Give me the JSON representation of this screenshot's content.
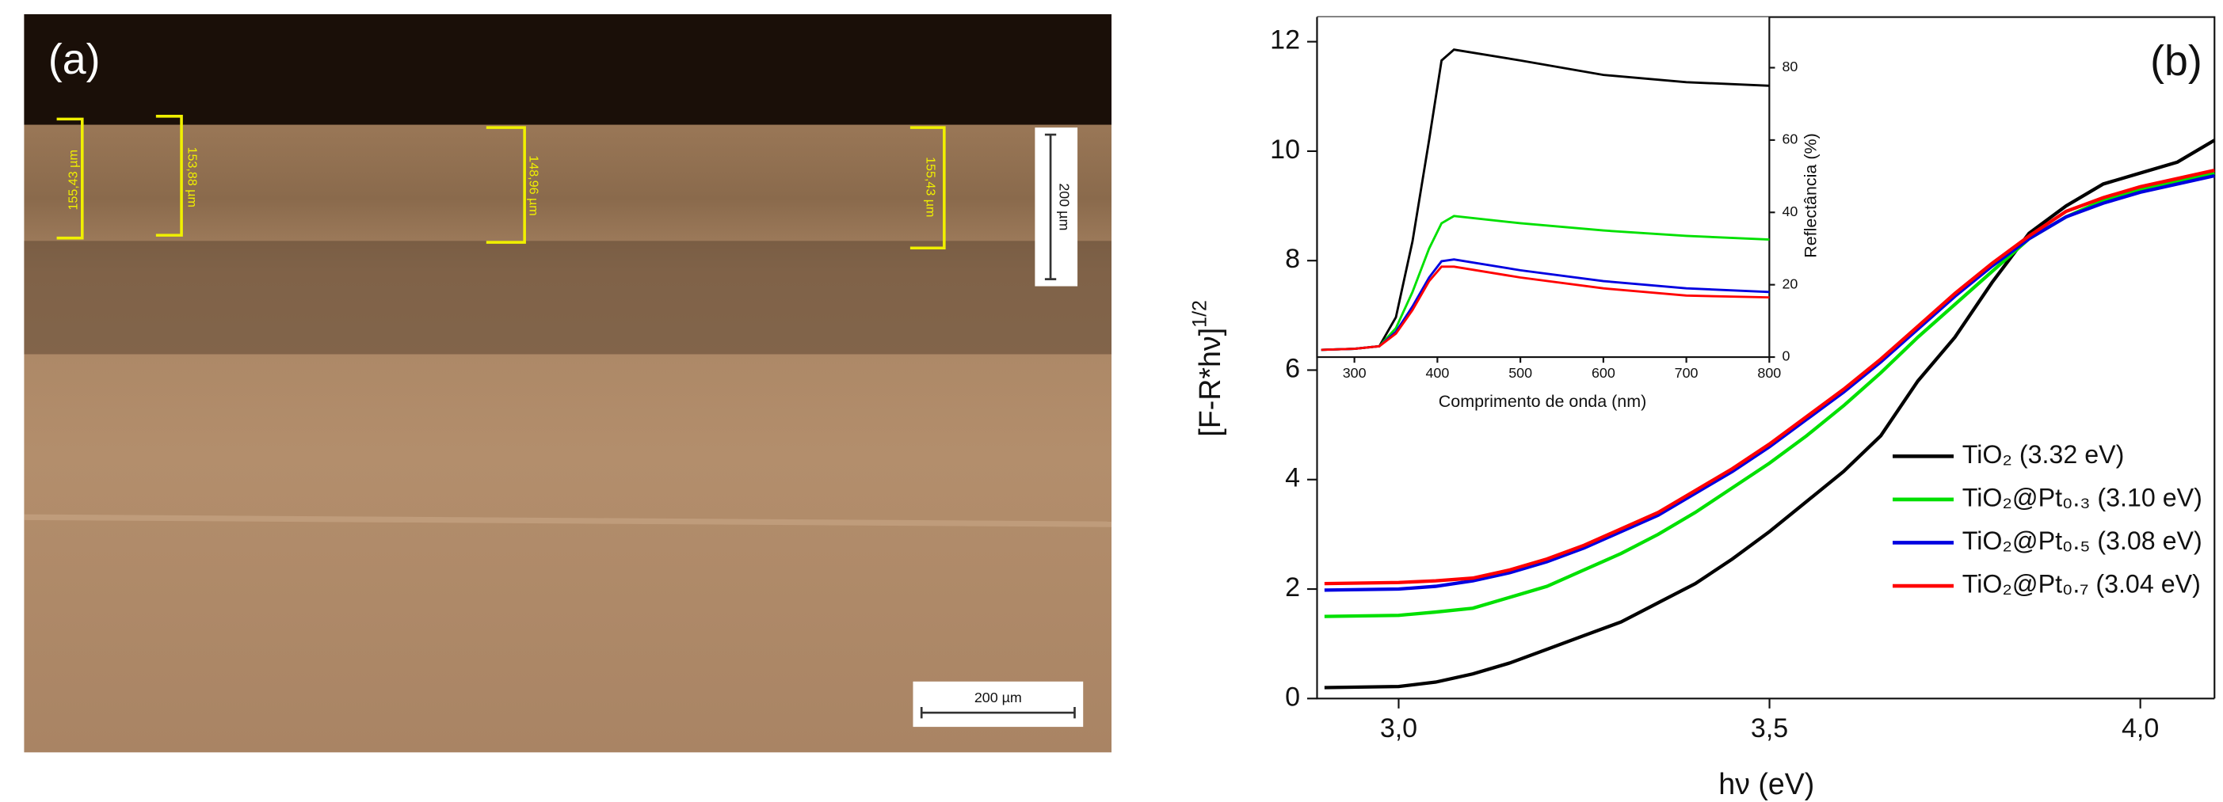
{
  "panel_a": {
    "label": "(a)",
    "measurements": [
      "155,43 µm",
      "153,88 µm",
      "148,96 µm",
      "155,43 µm"
    ],
    "vertical_scale": "200 µm",
    "scale_bar": "200 µm"
  },
  "chart_data": [
    {
      "type": "line",
      "panel_label": "(b)",
      "xlabel": "hν (eV)",
      "ylabel": "[F-R*hν]",
      "ylabel_superscript": "1/2",
      "x": [
        2.9,
        3.0,
        3.05,
        3.1,
        3.15,
        3.2,
        3.25,
        3.3,
        3.35,
        3.4,
        3.45,
        3.5,
        3.55,
        3.6,
        3.65,
        3.7,
        3.75,
        3.8,
        3.85,
        3.9,
        3.95,
        4.0,
        4.05,
        4.1
      ],
      "xlim": [
        2.89,
        4.1
      ],
      "ylim": [
        0,
        12.45
      ],
      "xticks": [
        {
          "value": 3.0,
          "label": "3,0"
        },
        {
          "value": 3.5,
          "label": "3,5"
        },
        {
          "value": 4.0,
          "label": "4,0"
        }
      ],
      "yticks": [
        0,
        2,
        4,
        6,
        8,
        10,
        12
      ],
      "legend": "lower right",
      "series": [
        {
          "name": "TiO₂ (3.32 eV)",
          "color": "#000000",
          "values": [
            0.2,
            0.22,
            0.3,
            0.45,
            0.65,
            0.9,
            1.15,
            1.4,
            1.75,
            2.1,
            2.55,
            3.05,
            3.6,
            4.15,
            4.8,
            5.8,
            6.6,
            7.6,
            8.5,
            9.0,
            9.4,
            9.6,
            9.8,
            10.2
          ]
        },
        {
          "name": "TiO₂@Pt₀.₃ (3.10 eV)",
          "color": "#00e000",
          "values": [
            1.5,
            1.52,
            1.58,
            1.65,
            1.85,
            2.05,
            2.35,
            2.65,
            3.0,
            3.4,
            3.85,
            4.3,
            4.8,
            5.35,
            5.95,
            6.6,
            7.2,
            7.8,
            8.4,
            8.8,
            9.1,
            9.3,
            9.45,
            9.6
          ]
        },
        {
          "name": "TiO₂@Pt₀.₅ (3.08 eV)",
          "color": "#0000e0",
          "values": [
            1.98,
            2.0,
            2.05,
            2.15,
            2.3,
            2.5,
            2.75,
            3.05,
            3.35,
            3.75,
            4.15,
            4.6,
            5.1,
            5.6,
            6.15,
            6.75,
            7.35,
            7.9,
            8.4,
            8.8,
            9.05,
            9.25,
            9.4,
            9.55
          ]
        },
        {
          "name": "TiO₂@Pt₀.₇ (3.04 eV)",
          "color": "#ff0000",
          "values": [
            2.1,
            2.12,
            2.15,
            2.2,
            2.35,
            2.55,
            2.8,
            3.1,
            3.4,
            3.8,
            4.2,
            4.65,
            5.15,
            5.65,
            6.2,
            6.8,
            7.4,
            7.95,
            8.45,
            8.9,
            9.15,
            9.35,
            9.5,
            9.65
          ]
        }
      ]
    },
    {
      "type": "line",
      "xlabel": "Comprimento de onda (nm)",
      "ylabel": "Reflectância (%)",
      "x": [
        260,
        300,
        330,
        350,
        370,
        390,
        405,
        420,
        500,
        600,
        700,
        800
      ],
      "xlim": [
        255,
        800
      ],
      "ylim": [
        0,
        94
      ],
      "xticks": [
        300,
        400,
        500,
        600,
        700,
        800
      ],
      "yticks": [
        0,
        20,
        40,
        60,
        80
      ],
      "series": [
        {
          "color": "#000000",
          "values": [
            2,
            2.3,
            3,
            11,
            32,
            60,
            82,
            85,
            82,
            78,
            76,
            75
          ]
        },
        {
          "color": "#00e000",
          "values": [
            2,
            2.3,
            3,
            8,
            18,
            30,
            37,
            39,
            37,
            35,
            33.5,
            32.5
          ]
        },
        {
          "color": "#0000e0",
          "values": [
            2,
            2.3,
            3,
            7,
            14,
            22,
            26.5,
            27,
            24,
            21,
            19,
            18
          ]
        },
        {
          "color": "#ff0000",
          "values": [
            2,
            2.3,
            3,
            6.5,
            13,
            21,
            25,
            25,
            22,
            19,
            17,
            16.5
          ]
        }
      ]
    }
  ]
}
